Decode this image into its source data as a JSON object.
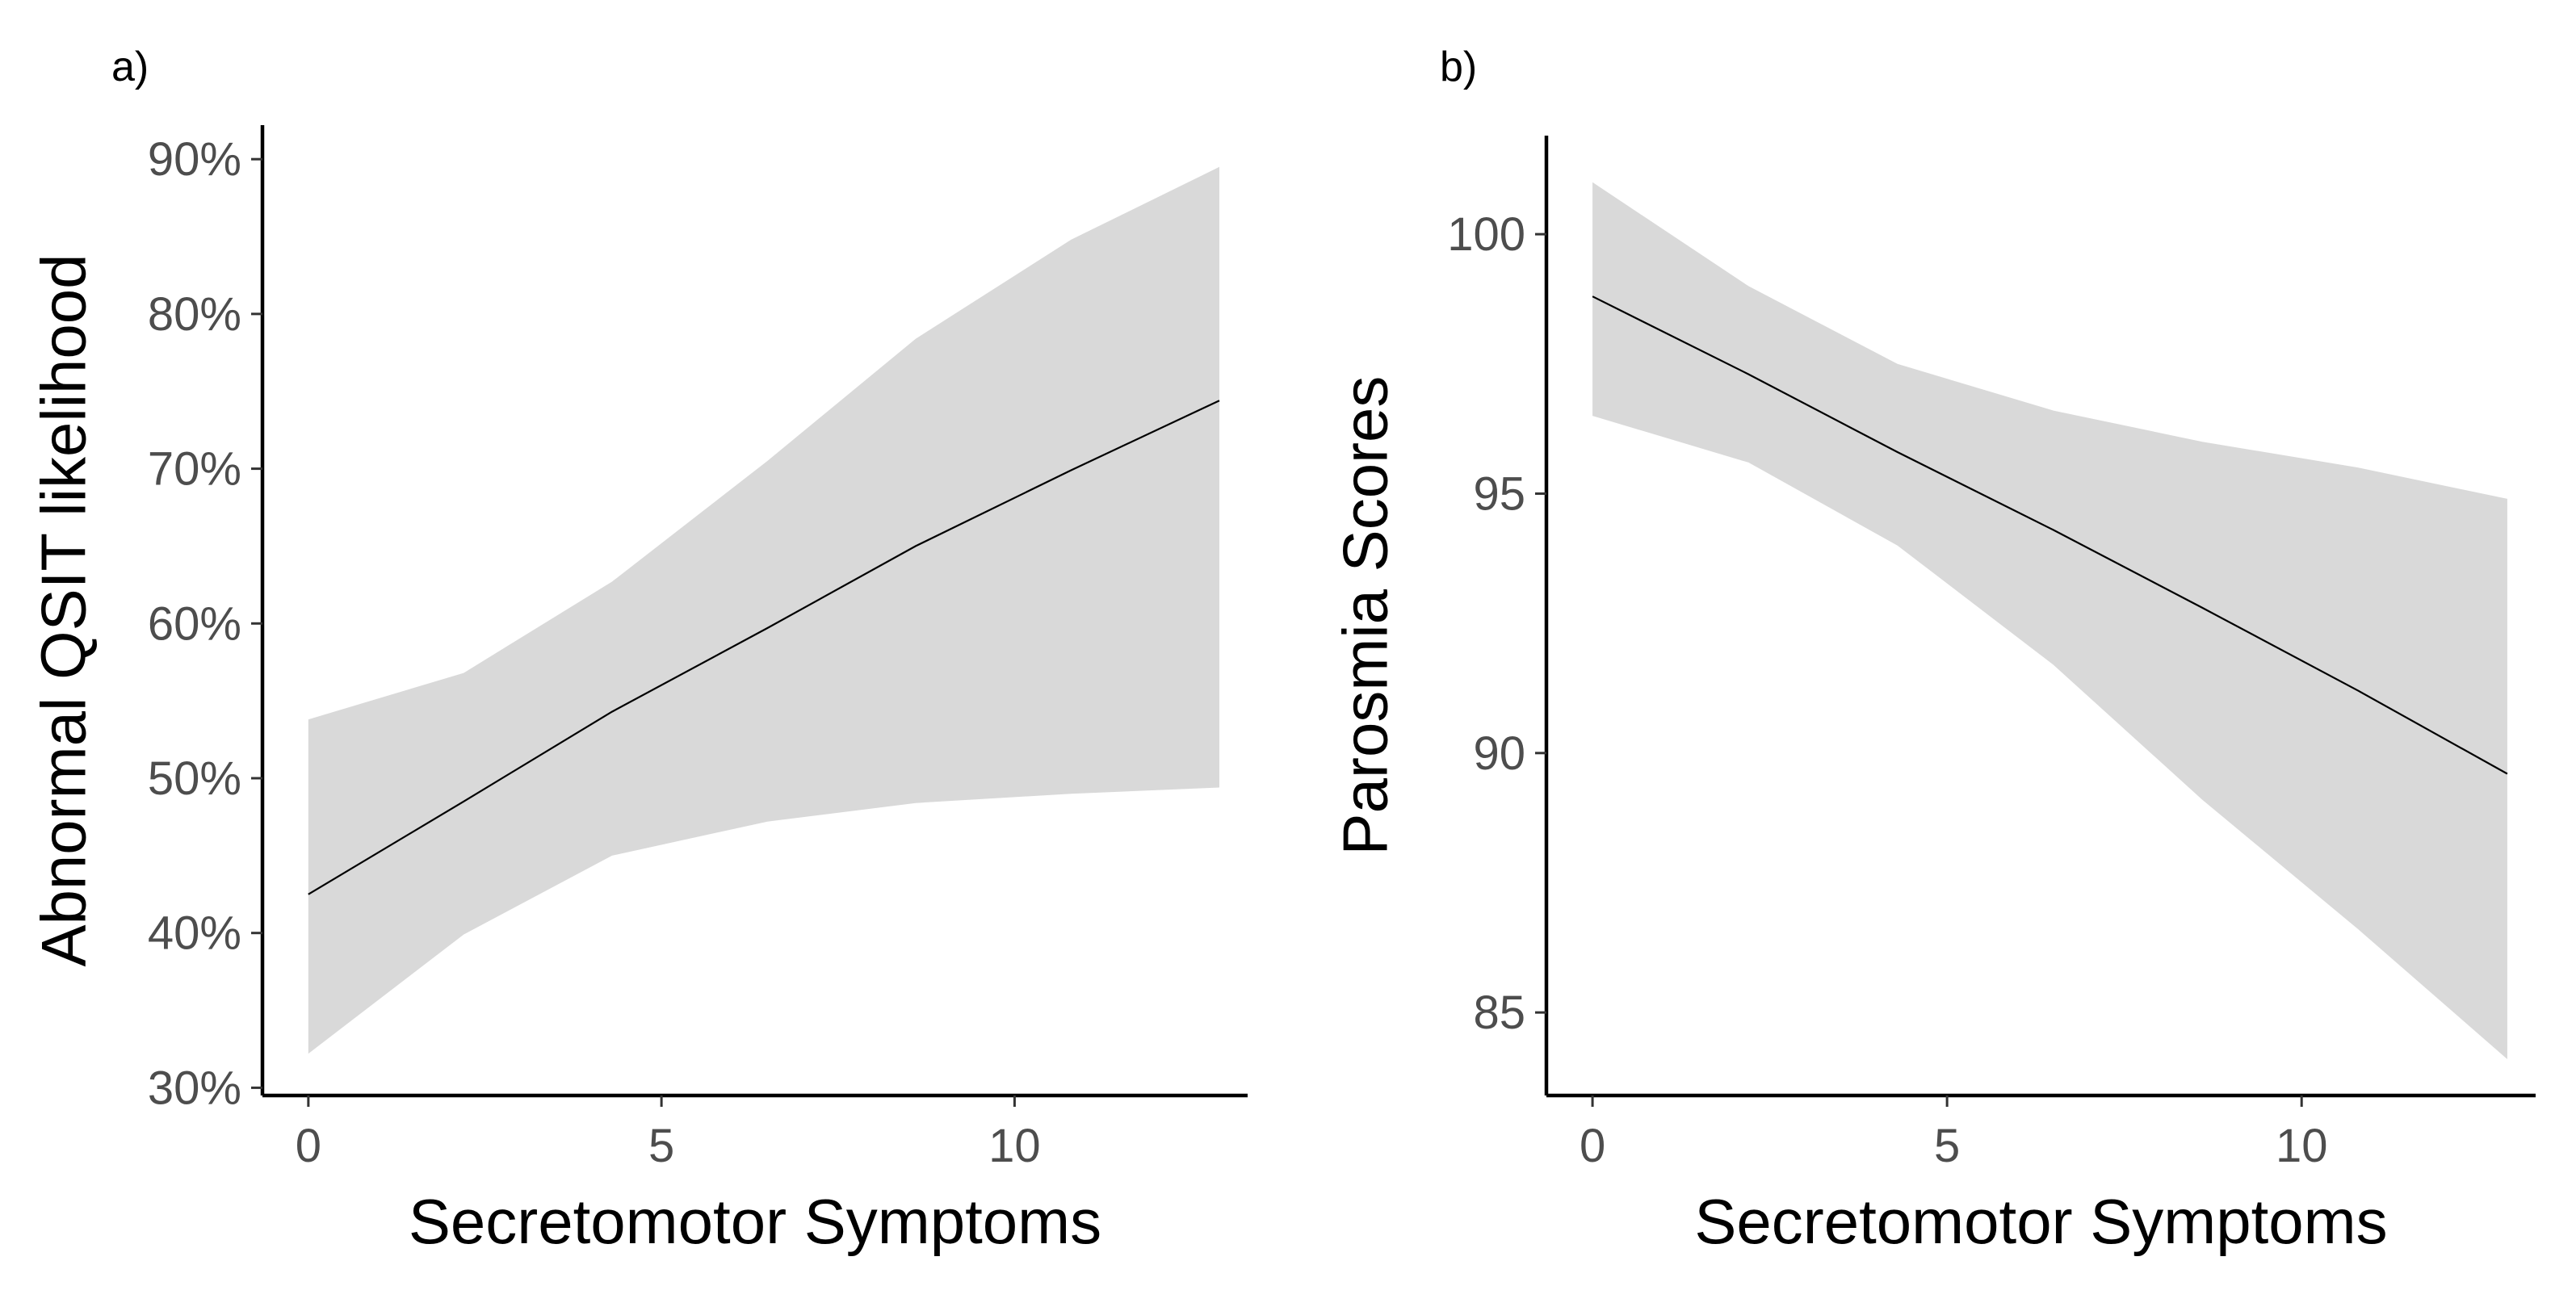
{
  "chart_data": [
    {
      "type": "line",
      "panel_label": "a)",
      "title": "",
      "xlabel": "Secretomotor Symptoms",
      "ylabel": "Abnormal QSIT likelihood",
      "xlim": [
        -0.65,
        13.3
      ],
      "ylim": [
        29.5,
        92.2
      ],
      "x_ticks": [
        0,
        5,
        10
      ],
      "y_ticks": [
        30,
        40,
        50,
        60,
        70,
        80,
        90
      ],
      "y_tick_labels": [
        "30%",
        "40%",
        "50%",
        "60%",
        "70%",
        "80%",
        "90%"
      ],
      "x_tick_labels": [
        "0",
        "5",
        "10"
      ],
      "grid": false,
      "series": [
        {
          "name": "fit",
          "color": "#000000",
          "x": [
            0,
            2.2,
            4.3,
            6.5,
            8.6,
            10.8,
            12.9
          ],
          "y": [
            42.5,
            48.5,
            54.3,
            59.7,
            65,
            69.9,
            74.4
          ]
        }
      ],
      "ribbon": {
        "color": "#d9d9d9",
        "x": [
          0,
          2.2,
          4.3,
          6.5,
          8.6,
          10.8,
          12.9
        ],
        "lower": [
          32.2,
          39.9,
          45,
          47.2,
          48.4,
          49,
          49.4
        ],
        "upper": [
          53.8,
          56.8,
          62.7,
          70.5,
          78.4,
          84.8,
          89.5
        ]
      }
    },
    {
      "type": "line",
      "panel_label": "b)",
      "title": "",
      "xlabel": "Secretomotor Symptoms",
      "ylabel": "Parosmia Scores",
      "xlim": [
        -0.65,
        13.3
      ],
      "ylim": [
        83.4,
        101.9
      ],
      "x_ticks": [
        0,
        5,
        10
      ],
      "y_ticks": [
        85,
        90,
        95,
        100
      ],
      "y_tick_labels": [
        "85",
        "90",
        "95",
        "100"
      ],
      "x_tick_labels": [
        "0",
        "5",
        "10"
      ],
      "grid": false,
      "series": [
        {
          "name": "fit",
          "color": "#000000",
          "x": [
            0,
            2.2,
            4.3,
            6.5,
            8.6,
            10.8,
            12.9
          ],
          "y": [
            98.8,
            97.3,
            95.8,
            94.3,
            92.8,
            91.2,
            89.6
          ]
        }
      ],
      "ribbon": {
        "color": "#d9d9d9",
        "x": [
          0,
          2.2,
          4.3,
          6.5,
          8.6,
          10.8,
          12.9
        ],
        "lower": [
          96.5,
          95.6,
          94,
          91.7,
          89.1,
          86.6,
          84.1
        ],
        "upper": [
          101,
          99,
          97.5,
          96.6,
          96,
          95.5,
          94.9
        ]
      }
    }
  ]
}
